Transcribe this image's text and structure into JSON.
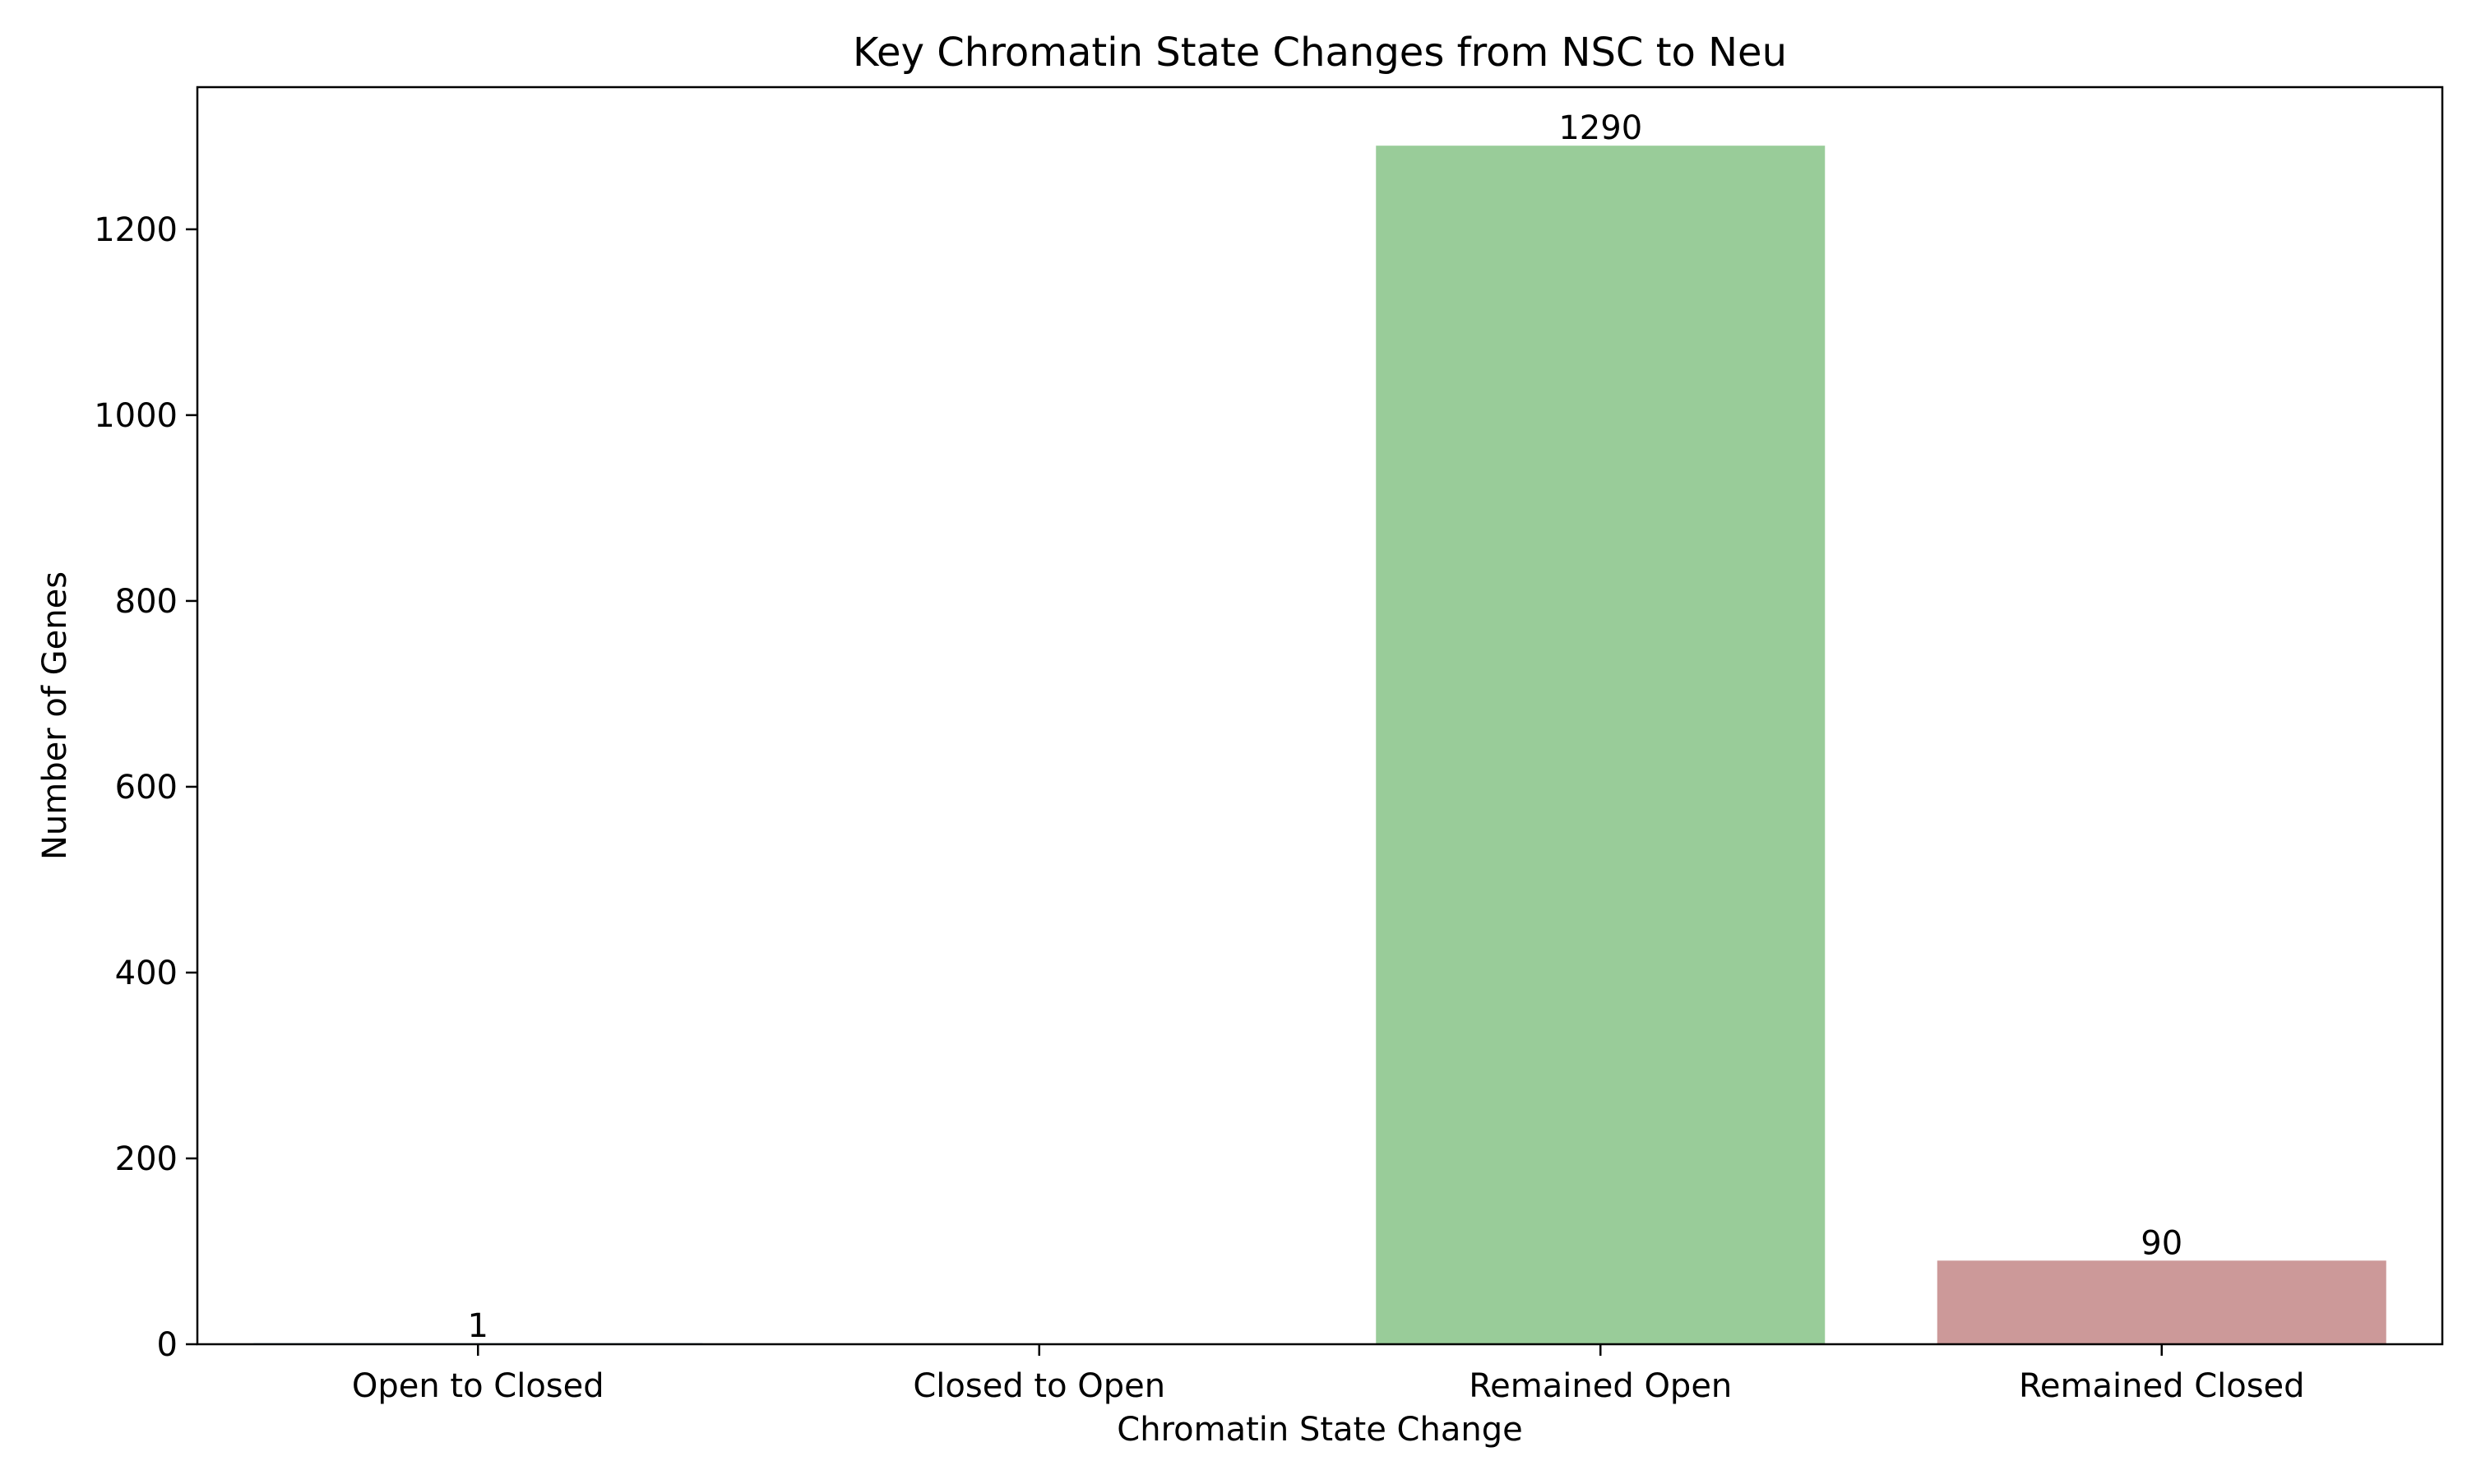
{
  "chart_data": {
    "type": "bar",
    "title": "Key Chromatin State Changes from NSC to Neu",
    "xlabel": "Chromatin State Change",
    "ylabel": "Number of Genes",
    "categories": [
      "Open to Closed",
      "Closed to Open",
      "Remained Open",
      "Remained Closed"
    ],
    "values": [
      1,
      0,
      1290,
      90
    ],
    "data_labels": [
      "1",
      "",
      "1290",
      "90"
    ],
    "bar_colors": [
      "#1f77b4",
      "#1f77b4",
      "#99cc99",
      "#cc9999"
    ],
    "ylim": [
      0,
      1353
    ],
    "yticks": [
      0,
      200,
      400,
      600,
      800,
      1000,
      1200
    ],
    "grid": false,
    "legend": "none"
  }
}
